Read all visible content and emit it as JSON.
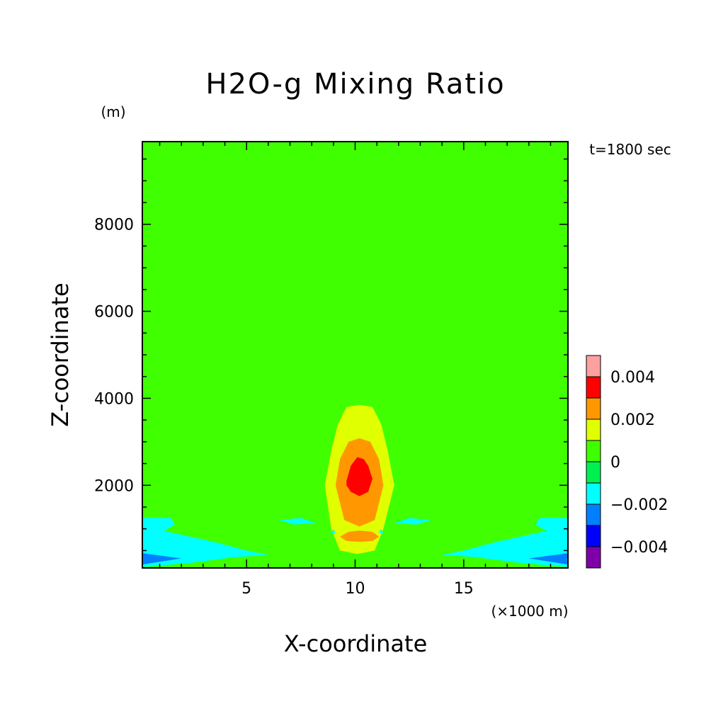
{
  "chart_data": {
    "type": "heatmap",
    "title": "H2O-g Mixing Ratio",
    "xlabel": "X-coordinate",
    "ylabel": "Z-coordinate",
    "x_unit": "(×1000 m)",
    "y_unit": "(m)",
    "time_label": "t=1800 sec",
    "xlim": [
      0.2,
      19.8
    ],
    "ylim": [
      100,
      9900
    ],
    "x_ticks": [
      "5",
      "10",
      "15"
    ],
    "x_tick_values": [
      5,
      10,
      15
    ],
    "y_ticks": [
      "2000",
      "4000",
      "6000",
      "8000"
    ],
    "y_tick_values": [
      2000,
      4000,
      6000,
      8000
    ],
    "colorbar": {
      "levels": [
        -0.005,
        -0.004,
        -0.003,
        -0.002,
        -0.001,
        0,
        0.001,
        0.002,
        0.003,
        0.004,
        0.005
      ],
      "colors": [
        "#7f00a8",
        "#0000ff",
        "#0080ff",
        "#00ffff",
        "#00f050",
        "#40ff00",
        "#e0ff00",
        "#ff9800",
        "#ff0000",
        "#ffa0a0"
      ],
      "labels": [
        "0.004",
        "0.002",
        "0",
        "−0.002",
        "−0.004"
      ],
      "label_values": [
        0.004,
        0.002,
        0,
        -0.002,
        -0.004
      ]
    },
    "grid": false,
    "background_value": 0,
    "regions": [
      {
        "name": "upper-positive-band",
        "level": 0.0005,
        "x": [
          0.2,
          5.2,
          5.3,
          5.5,
          6.0,
          6.6,
          7.5,
          8.5,
          10.0,
          11.5,
          12.5,
          13.4,
          14.0,
          14.5,
          14.7,
          14.8,
          19.8,
          19.8,
          16.5,
          15.2,
          14.2,
          13.2,
          12.5,
          12.0,
          11.4,
          11.0,
          10.3,
          9.7,
          9.0,
          8.6,
          8.1,
          7.1,
          6.2,
          5.3,
          4.0,
          0.2
        ],
        "y": [
          9600,
          9580,
          8000,
          7500,
          6900,
          6500,
          6250,
          6080,
          6060,
          6080,
          6250,
          6500,
          6900,
          7500,
          8000,
          9580,
          9600,
          6080,
          6120,
          6000,
          5800,
          5300,
          4800,
          4400,
          3900,
          3700,
          3500,
          3500,
          3700,
          3900,
          4400,
          5300,
          5800,
          6000,
          6120,
          6080
        ]
      },
      {
        "name": "left-mid-positive",
        "level": 0.0005,
        "x": [
          0.2,
          2.2,
          2.6,
          2.2,
          0.2
        ],
        "y": [
          2900,
          2850,
          2500,
          2050,
          2000
        ]
      },
      {
        "name": "right-mid-positive",
        "level": 0.0005,
        "x": [
          19.8,
          17.8,
          17.4,
          17.8,
          19.8
        ],
        "y": [
          2900,
          2850,
          2500,
          2050,
          2000
        ]
      },
      {
        "name": "low-positive-band",
        "level": 0.0005,
        "x": [
          8.5,
          9.2,
          10.1,
          11.0,
          11.8,
          12.5,
          12.3,
          11.2,
          10.1,
          9.0,
          7.8,
          7.6
        ],
        "y": [
          700,
          880,
          930,
          880,
          700,
          550,
          350,
          150,
          110,
          150,
          350,
          550
        ]
      },
      {
        "name": "core-0.001",
        "level": 0.0015,
        "x": [
          8.6,
          8.9,
          9.2,
          9.4,
          9.6,
          10.2,
          10.8,
          11.0,
          11.2,
          11.5,
          11.8,
          11.3,
          10.9,
          10.1,
          9.3,
          8.9
        ],
        "y": [
          2000,
          2800,
          3400,
          3600,
          3800,
          3850,
          3800,
          3600,
          3400,
          2800,
          2000,
          1000,
          500,
          420,
          500,
          1000
        ]
      },
      {
        "name": "core-0.002",
        "level": 0.0025,
        "x": [
          9.1,
          9.3,
          9.7,
          10.2,
          10.7,
          11.1,
          11.3,
          10.9,
          10.2,
          9.5
        ],
        "y": [
          2000,
          2600,
          3000,
          3080,
          3000,
          2600,
          2000,
          1200,
          1050,
          1200
        ]
      },
      {
        "name": "core-0.003",
        "level": 0.0035,
        "x": [
          9.6,
          9.8,
          10.1,
          10.4,
          10.6,
          10.8,
          10.6,
          10.2,
          9.8,
          9.6
        ],
        "y": [
          2100,
          2450,
          2650,
          2600,
          2450,
          2150,
          1850,
          1750,
          1850,
          2000
        ]
      },
      {
        "name": "low-orange-blob",
        "level": 0.0025,
        "x": [
          9.3,
          9.7,
          10.2,
          10.8,
          11.1,
          10.8,
          10.2,
          9.6
        ],
        "y": [
          820,
          930,
          960,
          930,
          820,
          720,
          700,
          720
        ]
      },
      {
        "name": "left-negative-band",
        "level": -0.0015,
        "x": [
          0.2,
          1.5,
          1.7,
          1.2,
          3.5,
          5.0,
          6.0,
          4.5,
          2.5,
          0.2
        ],
        "y": [
          1250,
          1250,
          1100,
          950,
          700,
          500,
          400,
          350,
          220,
          120
        ]
      },
      {
        "name": "right-negative-band",
        "level": -0.0015,
        "x": [
          19.8,
          18.5,
          18.3,
          18.8,
          16.5,
          15.0,
          14.0,
          15.5,
          17.5,
          19.8
        ],
        "y": [
          1250,
          1250,
          1100,
          950,
          700,
          500,
          400,
          350,
          220,
          120
        ]
      },
      {
        "name": "left-neg-sliver",
        "level": -0.0015,
        "x": [
          6.5,
          7.5,
          8.2,
          7.2
        ],
        "y": [
          1200,
          1250,
          1130,
          1100
        ]
      },
      {
        "name": "right-neg-sliver",
        "level": -0.0015,
        "x": [
          13.5,
          12.5,
          11.8,
          12.8
        ],
        "y": [
          1200,
          1250,
          1130,
          1100
        ]
      },
      {
        "name": "left-neg-dot",
        "level": -0.0015,
        "x": [
          8.9,
          9.1,
          9.0
        ],
        "y": [
          900,
          900,
          1000
        ]
      },
      {
        "name": "right-neg-dot",
        "level": -0.0015,
        "x": [
          11.1,
          11.3,
          11.2
        ],
        "y": [
          900,
          900,
          1000
        ]
      },
      {
        "name": "left-neg-0.002",
        "level": -0.0025,
        "x": [
          0.2,
          2.0,
          0.2
        ],
        "y": [
          440,
          320,
          180
        ]
      },
      {
        "name": "right-neg-0.002",
        "level": -0.0025,
        "x": [
          19.8,
          18.0,
          19.8
        ],
        "y": [
          440,
          320,
          180
        ]
      }
    ]
  }
}
